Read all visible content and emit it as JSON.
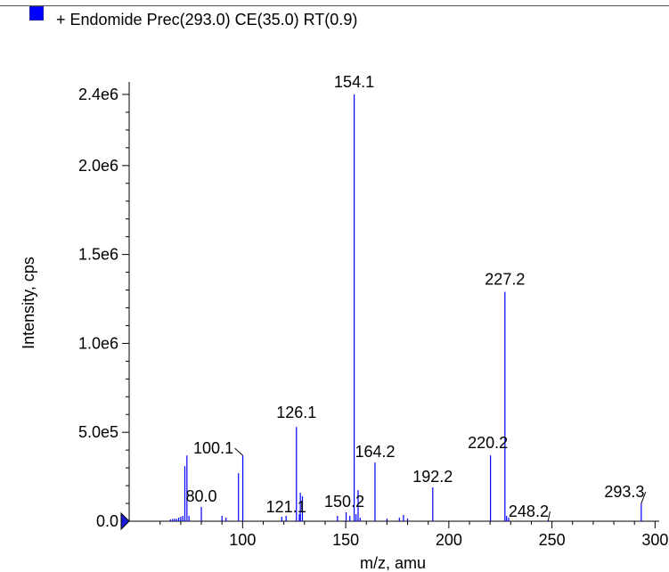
{
  "legend": {
    "label": "+ Endomide Prec(293.0) CE(35.0) RT(0.9)",
    "color": "#0000ff"
  },
  "chart_data": {
    "type": "bar",
    "xlabel": "m/z, amu",
    "ylabel": "Intensity, cps",
    "xlim": [
      45,
      302
    ],
    "ylim": [
      0,
      2450000.0
    ],
    "x_ticks": [
      100,
      150,
      200,
      250,
      300
    ],
    "x_tick_labels": [
      "100",
      "150",
      "200",
      "250",
      "300"
    ],
    "y_ticks": [
      0,
      500000,
      1000000,
      1500000,
      2000000,
      2400000
    ],
    "y_tick_labels": [
      "0.0",
      "5.0e5",
      "1.0e6",
      "1.5e6",
      "2.0e6",
      "2.4e6"
    ],
    "grid": false,
    "legend_position": "top-left",
    "series_color": "#0000ff",
    "peaks": [
      {
        "x": 65,
        "y": 10000
      },
      {
        "x": 66,
        "y": 12000
      },
      {
        "x": 67,
        "y": 15000
      },
      {
        "x": 68,
        "y": 13000
      },
      {
        "x": 69,
        "y": 20000
      },
      {
        "x": 70,
        "y": 25000
      },
      {
        "x": 71,
        "y": 30000
      },
      {
        "x": 72,
        "y": 310000
      },
      {
        "x": 73,
        "y": 370000
      },
      {
        "x": 74,
        "y": 30000
      },
      {
        "x": 80,
        "y": 80000
      },
      {
        "x": 90,
        "y": 30000
      },
      {
        "x": 92,
        "y": 20000
      },
      {
        "x": 98,
        "y": 270000
      },
      {
        "x": 100.1,
        "y": 370000
      },
      {
        "x": 119,
        "y": 25000
      },
      {
        "x": 121.1,
        "y": 30000
      },
      {
        "x": 126.1,
        "y": 530000
      },
      {
        "x": 127.5,
        "y": 40000
      },
      {
        "x": 128,
        "y": 160000
      },
      {
        "x": 129,
        "y": 140000
      },
      {
        "x": 146,
        "y": 30000
      },
      {
        "x": 150.2,
        "y": 50000
      },
      {
        "x": 152,
        "y": 30000
      },
      {
        "x": 154.1,
        "y": 2400000
      },
      {
        "x": 155,
        "y": 40000
      },
      {
        "x": 156,
        "y": 175000
      },
      {
        "x": 157,
        "y": 20000
      },
      {
        "x": 164.2,
        "y": 330000
      },
      {
        "x": 170,
        "y": 15000
      },
      {
        "x": 176,
        "y": 20000
      },
      {
        "x": 178,
        "y": 35000
      },
      {
        "x": 180,
        "y": 15000
      },
      {
        "x": 192.2,
        "y": 190000
      },
      {
        "x": 220.2,
        "y": 370000
      },
      {
        "x": 227.2,
        "y": 1290000
      },
      {
        "x": 228,
        "y": 30000
      },
      {
        "x": 229,
        "y": 20000
      },
      {
        "x": 248.2,
        "y": 5000
      },
      {
        "x": 293.3,
        "y": 100000
      }
    ],
    "labels": [
      {
        "text": "154.1",
        "x": 154.1,
        "y": 2400000
      },
      {
        "text": "227.2",
        "x": 227.2,
        "y": 1290000
      },
      {
        "text": "126.1",
        "x": 126.1,
        "y": 530000
      },
      {
        "text": "100.1",
        "x": 100.1,
        "y": 370000
      },
      {
        "text": "164.2",
        "x": 164.2,
        "y": 330000
      },
      {
        "text": "220.2",
        "x": 220.2,
        "y": 370000
      },
      {
        "text": "192.2",
        "x": 192.2,
        "y": 190000
      },
      {
        "text": "80.0",
        "x": 80,
        "y": 80000
      },
      {
        "text": "121.1",
        "x": 121.1,
        "y": 30000
      },
      {
        "text": "150.2",
        "x": 150.2,
        "y": 50000
      },
      {
        "text": "293.3",
        "x": 293.3,
        "y": 100000
      },
      {
        "text": "248.2",
        "x": 248.2,
        "y": 5000
      }
    ]
  }
}
